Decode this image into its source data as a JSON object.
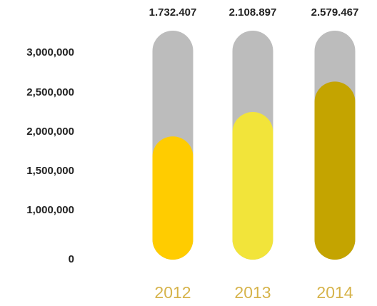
{
  "chart_data": {
    "type": "bar",
    "categories": [
      "2012",
      "2013",
      "2014"
    ],
    "values": [
      1732407,
      2108897,
      2579467
    ],
    "data_labels": [
      "1.732.407",
      "2.108.897",
      "2.579.467"
    ],
    "y_ticks": [
      {
        "value": 0,
        "label": "0"
      },
      {
        "value": 1000000,
        "label": "1,000,000"
      },
      {
        "value": 1500000,
        "label": "1,500,000"
      },
      {
        "value": 2000000,
        "label": "2,000,000"
      },
      {
        "value": 2500000,
        "label": "2,500,000"
      },
      {
        "value": 3000000,
        "label": "3,000,000"
      }
    ],
    "ylim": [
      0,
      3000000
    ],
    "title": "",
    "xlabel": "",
    "ylabel": "",
    "grid": false,
    "legend": "none",
    "colors": {
      "track": "#bcbcbc",
      "bars": [
        "#ffcc00",
        "#f2e43a",
        "#c4a400"
      ],
      "category_label": "#d6b34a"
    }
  }
}
